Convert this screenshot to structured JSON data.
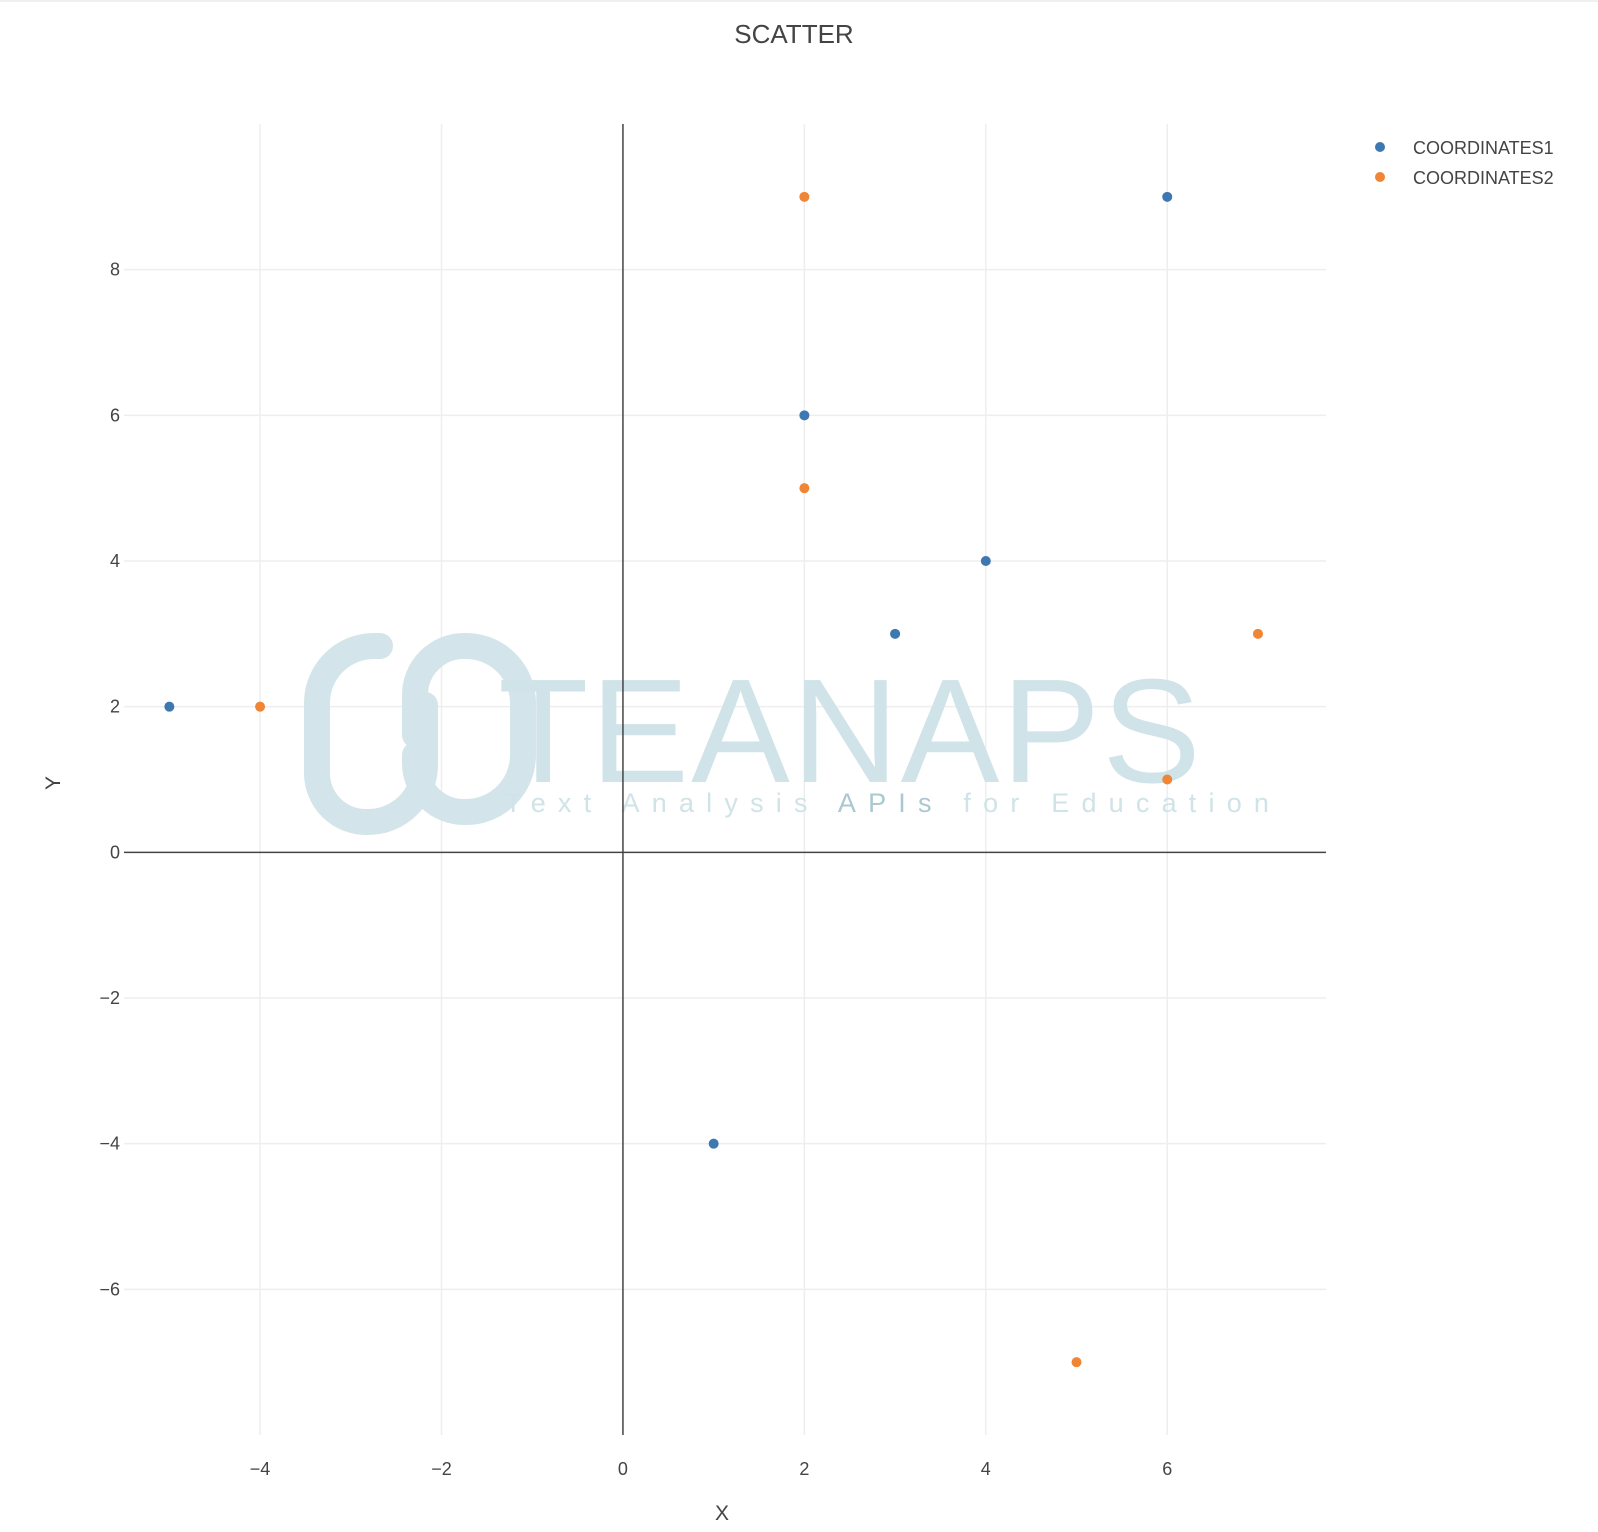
{
  "chart_data": {
    "type": "scatter",
    "title": "SCATTER",
    "xlabel": "X",
    "ylabel": "Y",
    "xlim": [
      -5.5,
      7.75
    ],
    "ylim": [
      -8.0,
      10.0
    ],
    "x_ticks": [
      -4,
      -2,
      0,
      2,
      4,
      6
    ],
    "y_ticks": [
      -6,
      -4,
      -2,
      0,
      2,
      4,
      6,
      8
    ],
    "x_tick_labels": [
      "−4",
      "−2",
      "0",
      "2",
      "4",
      "6"
    ],
    "y_tick_labels": [
      "−6",
      "−4",
      "−2",
      "0",
      "2",
      "4",
      "6",
      "8"
    ],
    "grid": true,
    "zero_lines": true,
    "legend_position": "top-right",
    "series": [
      {
        "name": "COORDINATES1",
        "color": "#3d78b1",
        "points": [
          {
            "x": -5,
            "y": 2
          },
          {
            "x": 1,
            "y": -4
          },
          {
            "x": 2,
            "y": 6
          },
          {
            "x": 3,
            "y": 3
          },
          {
            "x": 4,
            "y": 4
          },
          {
            "x": 6,
            "y": 9
          }
        ]
      },
      {
        "name": "COORDINATES2",
        "color": "#ef8535",
        "points": [
          {
            "x": -4,
            "y": 2
          },
          {
            "x": 2,
            "y": 9
          },
          {
            "x": 2,
            "y": 5
          },
          {
            "x": 5,
            "y": -7
          },
          {
            "x": 6,
            "y": 1
          },
          {
            "x": 7,
            "y": 3
          }
        ]
      }
    ]
  },
  "watermark": {
    "brand": "TEANAPS",
    "tagline_part1": "Text Analysis ",
    "tagline_part2": "APIs",
    "tagline_part3": " for Education",
    "color": "#cfe3e8",
    "accent_color": "#aac9d1"
  }
}
